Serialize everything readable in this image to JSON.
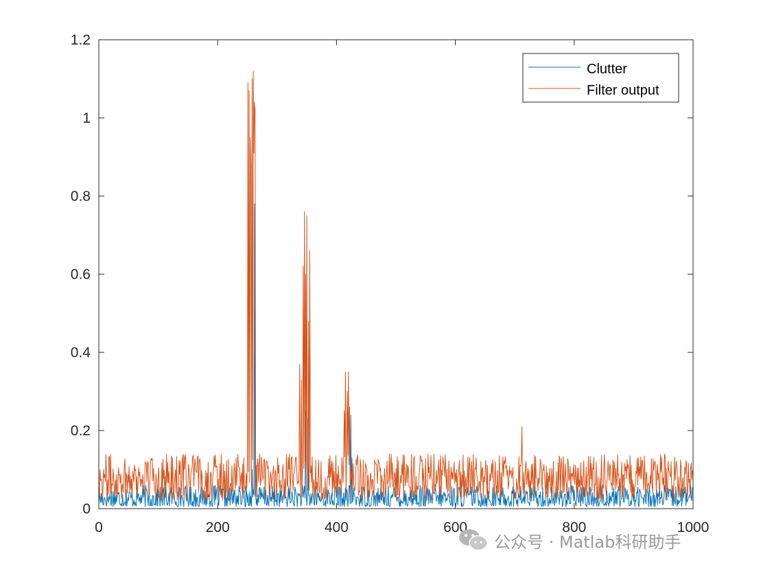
{
  "chart_data": {
    "type": "line",
    "title": "",
    "xlabel": "",
    "ylabel": "",
    "xlim": [
      0,
      1000
    ],
    "ylim": [
      0,
      1.2
    ],
    "xticks": [
      "0",
      "200",
      "400",
      "600",
      "800",
      "1000"
    ],
    "yticks": [
      "0",
      "0.2",
      "0.4",
      "0.6",
      "0.8",
      "1",
      "1.2"
    ],
    "grid": false,
    "legend_position": "top-right",
    "n_samples": 1000,
    "series": [
      {
        "name": "Clutter",
        "color": "#0072BD",
        "baseline_range": [
          0.005,
          0.06
        ],
        "peaks": [
          {
            "x": 258,
            "y": 0.1
          },
          {
            "x": 262,
            "y": 0.78
          },
          {
            "x": 348,
            "y": 0.25
          },
          {
            "x": 352,
            "y": 0.23
          },
          {
            "x": 424,
            "y": 0.24
          },
          {
            "x": 426,
            "y": 0.13
          }
        ]
      },
      {
        "name": "Filter output",
        "color": "#D95319",
        "baseline_range": [
          0.02,
          0.14
        ],
        "peaks": [
          {
            "x": 251,
            "y": 1.09
          },
          {
            "x": 253,
            "y": 1.07
          },
          {
            "x": 255,
            "y": 0.95
          },
          {
            "x": 256,
            "y": 0.88
          },
          {
            "x": 258,
            "y": 1.1
          },
          {
            "x": 260,
            "y": 1.12
          },
          {
            "x": 261,
            "y": 0.91
          },
          {
            "x": 262,
            "y": 1.04
          },
          {
            "x": 263,
            "y": 1.02
          },
          {
            "x": 338,
            "y": 0.37
          },
          {
            "x": 341,
            "y": 0.33
          },
          {
            "x": 344,
            "y": 0.62
          },
          {
            "x": 346,
            "y": 0.76
          },
          {
            "x": 348,
            "y": 0.6
          },
          {
            "x": 350,
            "y": 0.75
          },
          {
            "x": 353,
            "y": 0.48
          },
          {
            "x": 355,
            "y": 0.66
          },
          {
            "x": 413,
            "y": 0.25
          },
          {
            "x": 415,
            "y": 0.35
          },
          {
            "x": 418,
            "y": 0.3
          },
          {
            "x": 420,
            "y": 0.35
          },
          {
            "x": 422,
            "y": 0.26
          },
          {
            "x": 712,
            "y": 0.21
          }
        ]
      }
    ]
  },
  "watermark": {
    "text": "公众号 · Matlab科研助手",
    "icon": "wechat-icon"
  }
}
